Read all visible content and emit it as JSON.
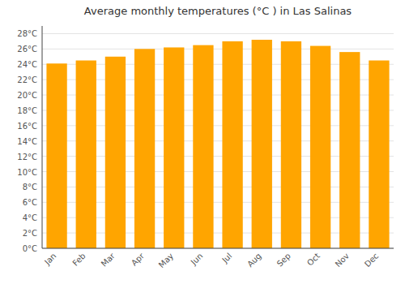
{
  "chart_data": {
    "type": "bar",
    "title": "Average monthly temperatures (°C ) in Las Salinas",
    "categories": [
      "Jan",
      "Feb",
      "Mar",
      "Apr",
      "May",
      "Jun",
      "Jul",
      "Aug",
      "Sep",
      "Oct",
      "Nov",
      "Dec"
    ],
    "values": [
      24.1,
      24.5,
      25.0,
      26.0,
      26.2,
      26.5,
      27.0,
      27.2,
      27.0,
      26.4,
      25.6,
      24.5
    ],
    "color": "#FFA500",
    "ylim": [
      0,
      29
    ],
    "yticks": [
      {
        "value": 0,
        "label": "0°C"
      },
      {
        "value": 2,
        "label": "2°C"
      },
      {
        "value": 4,
        "label": "4°C"
      },
      {
        "value": 6,
        "label": "6°C"
      },
      {
        "value": 8,
        "label": "8°C"
      },
      {
        "value": 10,
        "label": "10°C"
      },
      {
        "value": 12,
        "label": "12°C"
      },
      {
        "value": 14,
        "label": "14°C"
      },
      {
        "value": 16,
        "label": "16°C"
      },
      {
        "value": 18,
        "label": "18°C"
      },
      {
        "value": 20,
        "label": "20°C"
      },
      {
        "value": 22,
        "label": "22°C"
      },
      {
        "value": 24,
        "label": "24°C"
      },
      {
        "value": 26,
        "label": "26°C"
      },
      {
        "value": 28,
        "label": "28°C"
      }
    ],
    "grid": true
  }
}
